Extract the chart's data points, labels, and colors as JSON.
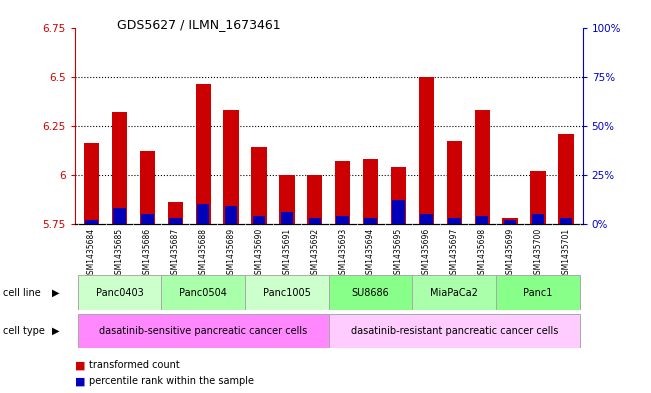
{
  "title": "GDS5627 / ILMN_1673461",
  "samples": [
    "GSM1435684",
    "GSM1435685",
    "GSM1435686",
    "GSM1435687",
    "GSM1435688",
    "GSM1435689",
    "GSM1435690",
    "GSM1435691",
    "GSM1435692",
    "GSM1435693",
    "GSM1435694",
    "GSM1435695",
    "GSM1435696",
    "GSM1435697",
    "GSM1435698",
    "GSM1435699",
    "GSM1435700",
    "GSM1435701"
  ],
  "transformed_count": [
    6.16,
    6.32,
    6.12,
    5.86,
    6.46,
    6.33,
    6.14,
    6.0,
    6.0,
    6.07,
    6.08,
    6.04,
    6.5,
    6.17,
    6.33,
    5.78,
    6.02,
    6.21
  ],
  "percentile_rank": [
    2,
    8,
    5,
    3,
    10,
    9,
    4,
    6,
    3,
    4,
    3,
    12,
    5,
    3,
    4,
    2,
    5,
    3
  ],
  "base_value": 5.75,
  "ylim_left": [
    5.75,
    6.75
  ],
  "ylim_right": [
    0,
    100
  ],
  "yticks_left": [
    5.75,
    6.0,
    6.25,
    6.5,
    6.75
  ],
  "yticks_right": [
    0,
    25,
    50,
    75,
    100
  ],
  "ytick_labels_left": [
    "5.75",
    "6",
    "6.25",
    "6.5",
    "6.75"
  ],
  "ytick_labels_right": [
    "0%",
    "25%",
    "50%",
    "75%",
    "100%"
  ],
  "cell_line_groups": [
    {
      "label": "Panc0403",
      "start": 0,
      "end": 2,
      "color": "#ccffcc"
    },
    {
      "label": "Panc0504",
      "start": 3,
      "end": 5,
      "color": "#aaffaa"
    },
    {
      "label": "Panc1005",
      "start": 6,
      "end": 8,
      "color": "#ccffcc"
    },
    {
      "label": "SU8686",
      "start": 9,
      "end": 11,
      "color": "#88ff88"
    },
    {
      "label": "MiaPaCa2",
      "start": 12,
      "end": 14,
      "color": "#aaffaa"
    },
    {
      "label": "Panc1",
      "start": 15,
      "end": 17,
      "color": "#88ff88"
    }
  ],
  "cell_type_groups": [
    {
      "label": "dasatinib-sensitive pancreatic cancer cells",
      "start": 0,
      "end": 8,
      "color": "#ff88ff"
    },
    {
      "label": "dasatinib-resistant pancreatic cancer cells",
      "start": 9,
      "end": 17,
      "color": "#ffccff"
    }
  ],
  "bar_color": "#cc0000",
  "blue_color": "#0000bb",
  "grid_color": "#000000",
  "background_color": "#ffffff",
  "tick_label_color_left": "#cc0000",
  "tick_label_color_right": "#0000cc",
  "xtick_bg_color": "#cccccc"
}
